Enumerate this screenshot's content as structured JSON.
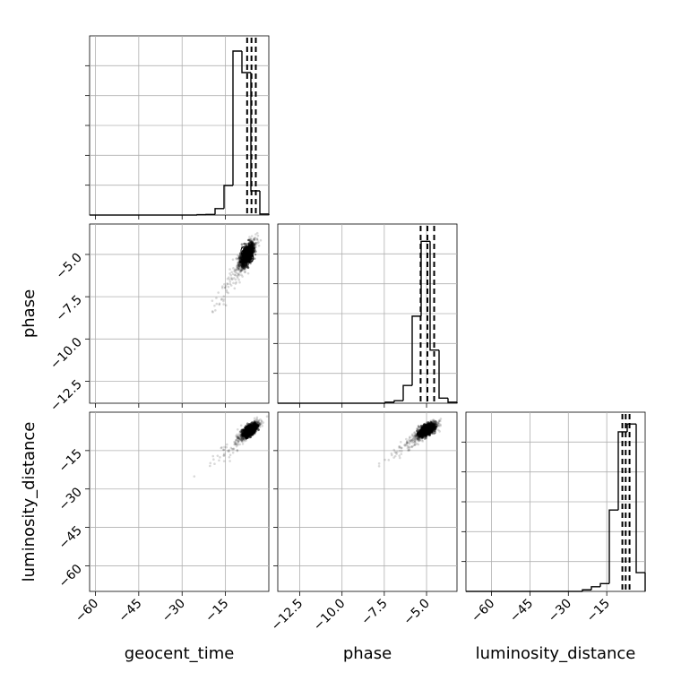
{
  "chart_data": {
    "type": "corner",
    "parameters": [
      "geocent_time",
      "phase",
      "luminosity_distance"
    ],
    "grid": true,
    "ranges": {
      "geocent_time": [
        -62,
        0
      ],
      "phase": [
        -13.8,
        -3.2
      ],
      "luminosity_distance": [
        -70,
        0
      ]
    },
    "ticks": {
      "geocent_time": {
        "values": [
          -60,
          -45,
          -30,
          -15
        ],
        "labels": [
          "−60",
          "−45",
          "−30",
          "−15"
        ]
      },
      "phase": {
        "values": [
          -12.5,
          -10.0,
          -7.5,
          -5.0
        ],
        "labels": [
          "−12.5",
          "−10.0",
          "−7.5",
          "−5.0"
        ]
      },
      "luminosity_distance": {
        "values": [
          -60,
          -45,
          -30,
          -15
        ],
        "labels": [
          "−60",
          "−45",
          "−30",
          "−15"
        ]
      }
    },
    "quantiles": {
      "geocent_time": [
        -7.5,
        -6.0,
        -4.5
      ],
      "phase": [
        -5.35,
        -4.95,
        -4.55
      ],
      "luminosity_distance": [
        -8.9,
        -7.6,
        -6.1
      ]
    },
    "histograms": {
      "geocent_time": {
        "edges": [
          -62,
          -58.9,
          -55.8,
          -52.7,
          -49.6,
          -46.5,
          -43.4,
          -40.3,
          -37.2,
          -34.1,
          -31.0,
          -27.9,
          -24.8,
          -21.7,
          -18.6,
          -15.5,
          -12.4,
          -9.3,
          -6.2,
          -3.1,
          0
        ],
        "counts": [
          0,
          0,
          0,
          0,
          0,
          0,
          0,
          0,
          0,
          0,
          0,
          0,
          0.008,
          0.012,
          0.12,
          0.55,
          3.05,
          2.65,
          0.45,
          0.02
        ],
        "ymax": 3.2
      },
      "phase": {
        "edges": [
          -13.8,
          -13.27,
          -12.74,
          -12.21,
          -11.68,
          -11.15,
          -10.62,
          -10.09,
          -9.56,
          -9.03,
          -8.5,
          -7.97,
          -7.44,
          -6.91,
          -6.38,
          -5.85,
          -5.32,
          -4.79,
          -4.26,
          -3.73,
          -3.2
        ],
        "counts": [
          0,
          0,
          0,
          0,
          0,
          0,
          0,
          0,
          0,
          0,
          0,
          0,
          0.02,
          0.05,
          0.35,
          1.72,
          3.2,
          1.05,
          0.1,
          0.02
        ],
        "ymax": 3.4
      },
      "luminosity_distance": {
        "edges": [
          -70,
          -66.5,
          -63,
          -59.5,
          -56,
          -52.5,
          -49,
          -45.5,
          -42,
          -38.5,
          -35,
          -31.5,
          -28,
          -24.5,
          -21,
          -17.5,
          -14,
          -10.5,
          -7,
          -3.5,
          0
        ],
        "counts": [
          0,
          0,
          0,
          0,
          0,
          0,
          0,
          0,
          0,
          0,
          0,
          0,
          0,
          0.01,
          0.03,
          0.05,
          0.52,
          1.02,
          1.07,
          0.12
        ],
        "ymax": 1.1
      }
    },
    "scatter": {
      "phase_vs_geocent_time": {
        "center": [
          -7.5,
          -5.0
        ],
        "spread": [
          2.6,
          0.75
        ]
      },
      "luminosity_distance_vs_geocent_time": {
        "center": [
          -6.5,
          -7.0
        ],
        "spread": [
          2.8,
          3.0
        ]
      },
      "luminosity_distance_vs_phase": {
        "center": [
          -5.0,
          -7.0
        ],
        "spread": [
          0.55,
          2.8
        ]
      }
    }
  }
}
